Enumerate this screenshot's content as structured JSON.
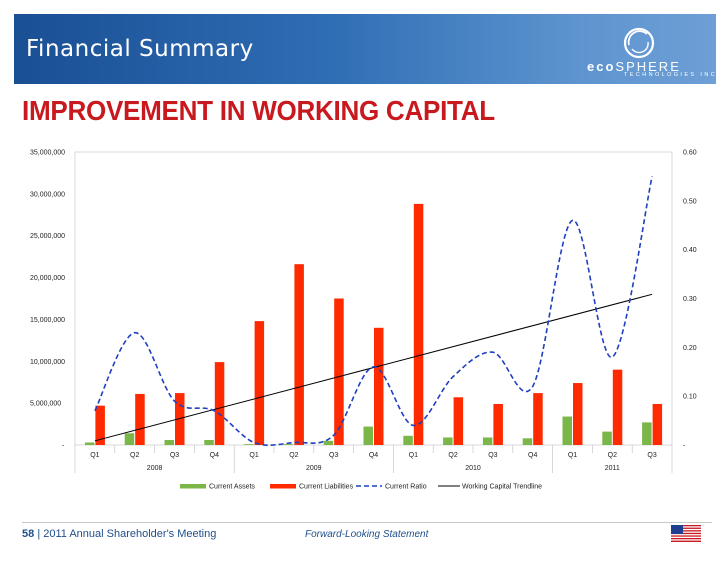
{
  "header": {
    "title": "Financial Summary",
    "logo_eco": "eco",
    "logo_sphere": "SPHERE",
    "logo_sub": "TECHNOLOGIES INC."
  },
  "headline": "IMPROVEMENT IN WORKING CAPITAL",
  "footer": {
    "page_number": "58",
    "separator": "|",
    "meeting": "2011 Annual Shareholder's Meeting",
    "center_text": "Forward-Looking Statement"
  },
  "colors": {
    "current_assets": "#7ab648",
    "current_liabilities": "#ff2a00",
    "current_ratio": "#1f3fbf",
    "trendline": "#000000",
    "headline": "#c8191f"
  },
  "chart_data": {
    "type": "bar",
    "title": "",
    "categories": [
      "Q1",
      "Q2",
      "Q3",
      "Q4",
      "Q1",
      "Q2",
      "Q3",
      "Q4",
      "Q1",
      "Q2",
      "Q3",
      "Q4",
      "Q1",
      "Q2",
      "Q3"
    ],
    "years": [
      {
        "label": "2008",
        "span": 4
      },
      {
        "label": "2009",
        "span": 4
      },
      {
        "label": "2010",
        "span": 4
      },
      {
        "label": "2011",
        "span": 3
      }
    ],
    "y_left": {
      "ylim": [
        0,
        35000000
      ],
      "ticks": [
        "35,000,000",
        "30,000,000",
        "25,000,000",
        "20,000,000",
        "15,000,000",
        "10,000,000",
        "5,000,000",
        "-"
      ]
    },
    "y_right": {
      "ylim": [
        0,
        0.6
      ],
      "ticks": [
        "0.60",
        "0.50",
        "0.40",
        "0.30",
        "0.20",
        "0.10",
        "-"
      ]
    },
    "series": [
      {
        "name": "Current Assets",
        "axis": "left",
        "kind": "bar",
        "values": [
          300000,
          1400000,
          600000,
          600000,
          100000,
          100000,
          500000,
          2200000,
          1100000,
          900000,
          900000,
          800000,
          3400000,
          1600000,
          2700000
        ]
      },
      {
        "name": "Current Liabilities",
        "axis": "left",
        "kind": "bar",
        "values": [
          4700000,
          6100000,
          6200000,
          9900000,
          14800000,
          21600000,
          17500000,
          14000000,
          28800000,
          5700000,
          4900000,
          6200000,
          7400000,
          9000000,
          4900000
        ]
      },
      {
        "name": "Current Ratio",
        "axis": "right",
        "kind": "line-dashed",
        "values": [
          0.07,
          0.23,
          0.09,
          0.07,
          0.005,
          0.005,
          0.02,
          0.16,
          0.04,
          0.14,
          0.19,
          0.12,
          0.46,
          0.18,
          0.55
        ]
      },
      {
        "name": "Working Capital Trendline",
        "axis": "left",
        "kind": "line",
        "start": 500000,
        "end": 18000000
      }
    ]
  }
}
